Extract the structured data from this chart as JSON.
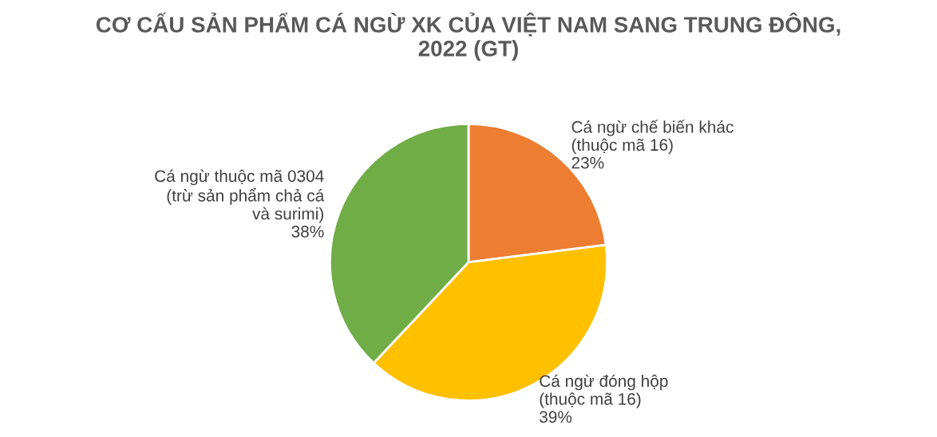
{
  "chart_data": {
    "type": "pie",
    "title": "CƠ CẤU SẢN PHẨM CÁ NGỪ XK CỦA VIỆT NAM SANG TRUNG ĐÔNG,\n2022 (GT)",
    "categories": [
      "Cá ngừ chế biến khác\n(thuộc mã 16)",
      "Cá ngừ đóng hộp\n(thuộc mã 16)",
      "Cá ngừ thuộc mã 0304\n(trừ sản phẩm chả cá\nvà surimi)"
    ],
    "values": [
      23,
      39,
      38
    ],
    "value_labels": [
      "23%",
      "39%",
      "38%"
    ],
    "colors": [
      "#ed7d31",
      "#ffc000",
      "#70ad47"
    ],
    "legend": false
  }
}
